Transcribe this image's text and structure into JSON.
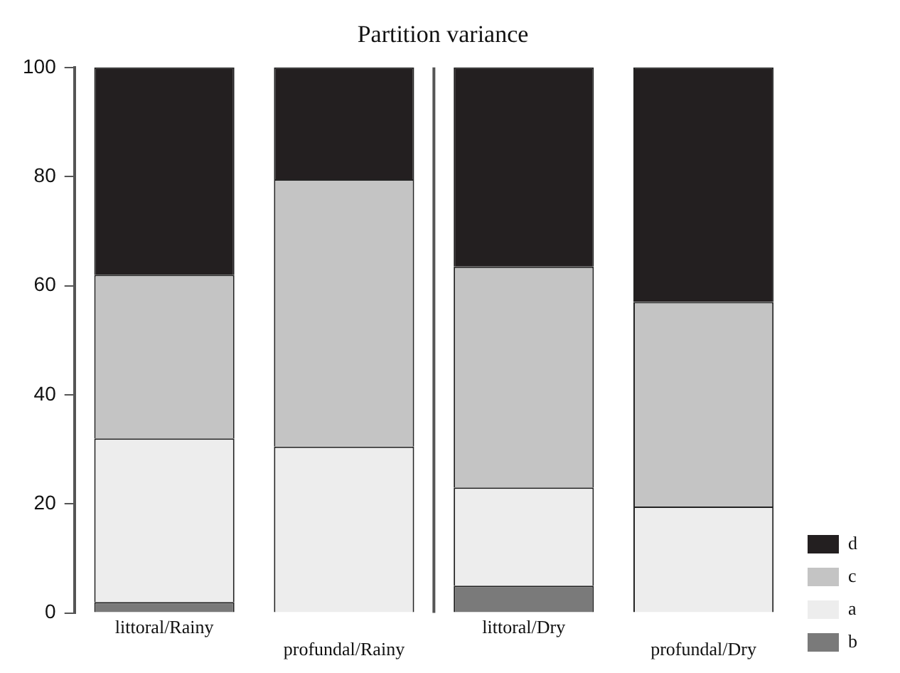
{
  "chart_data": {
    "type": "bar",
    "title": "Partition variance",
    "categories": [
      "littoral/Rainy",
      "profundal/Rainy",
      "littoral/Dry",
      "profundal/Dry"
    ],
    "stacked": true,
    "series": [
      {
        "name": "b",
        "color": "#7a7a7a",
        "values": [
          2,
          0,
          5,
          0
        ]
      },
      {
        "name": "a",
        "color": "#ededed",
        "values": [
          30,
          30.5,
          18,
          19.5
        ]
      },
      {
        "name": "c",
        "color": "#c4c4c4",
        "values": [
          30,
          49,
          40.5,
          37.5
        ]
      },
      {
        "name": "d",
        "color": "#231f20",
        "values": [
          38,
          20.5,
          36.5,
          43
        ]
      }
    ],
    "ylim": [
      0,
      100
    ],
    "yticks": [
      0,
      20,
      40,
      60,
      80,
      100
    ],
    "grid": false,
    "legend": "bottom right"
  }
}
